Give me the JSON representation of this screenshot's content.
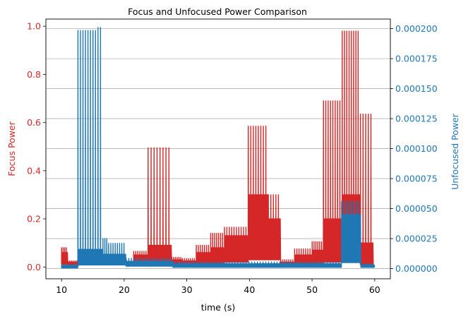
{
  "chart_data": {
    "type": "line",
    "title": "Focus and Unfocused Power Comparison",
    "xlabel": "time (s)",
    "xlim": [
      7.5,
      62.5
    ],
    "xticks": [
      "10",
      "20",
      "30",
      "40",
      "50",
      "60"
    ],
    "xtick_values": [
      10,
      20,
      30,
      40,
      50,
      60
    ],
    "grid": "horizontal lines at right-axis ticks",
    "colors": {
      "focus": "#d62728",
      "unfocused": "#1f77b4",
      "grid": "#b0b0b0"
    },
    "left_axis": {
      "label": "Focus Power",
      "ylim": [
        -0.049,
        1.03
      ],
      "ticks": [
        "0.0",
        "0.2",
        "0.4",
        "0.6",
        "0.8",
        "1.0"
      ],
      "tick_values": [
        0.0,
        0.2,
        0.4,
        0.6,
        0.8,
        1.0
      ]
    },
    "right_axis": {
      "label": "Unfocused Power",
      "ylim": [
        -8.5e-06,
        0.000208
      ],
      "ticks": [
        "0.000000",
        "0.000025",
        "0.000050",
        "0.000075",
        "0.000100",
        "0.000125",
        "0.000150",
        "0.000175",
        "0.000200"
      ],
      "tick_values": [
        0,
        2.5e-05,
        5e-05,
        7.5e-05,
        0.0001,
        0.000125,
        0.00015,
        0.000175,
        0.0002
      ]
    },
    "series": [
      {
        "name": "Focus Power",
        "axis": "left",
        "segments": [
          {
            "start": 10.0,
            "end": 11.0,
            "peak": 0.08,
            "body": 0.06,
            "base": 0.01,
            "spikes": 4
          },
          {
            "start": 11.0,
            "end": 12.7,
            "peak": 0.025,
            "body": 0.02,
            "base": 0.005,
            "spikes": 6
          },
          {
            "start": 12.7,
            "end": 16.0,
            "peak": 0.06,
            "body": 0.04,
            "base": 0.01,
            "spikes": 8
          },
          {
            "start": 16.0,
            "end": 18.5,
            "peak": 0.04,
            "body": 0.03,
            "base": 0.01,
            "spikes": 7
          },
          {
            "start": 18.5,
            "end": 21.5,
            "peak": 0.025,
            "body": 0.02,
            "base": 0.01,
            "spikes": 8
          },
          {
            "start": 21.5,
            "end": 23.8,
            "peak": 0.065,
            "body": 0.05,
            "base": 0.01,
            "spikes": 7
          },
          {
            "start": 23.8,
            "end": 27.6,
            "peak": 0.495,
            "body": 0.09,
            "base": 0.02,
            "spikes": 8
          },
          {
            "start": 27.6,
            "end": 29.3,
            "peak": 0.04,
            "body": 0.03,
            "base": 0.005,
            "spikes": 6
          },
          {
            "start": 29.3,
            "end": 31.5,
            "peak": 0.035,
            "body": 0.025,
            "base": 0.005,
            "spikes": 7
          },
          {
            "start": 31.5,
            "end": 33.8,
            "peak": 0.09,
            "body": 0.06,
            "base": 0.01,
            "spikes": 7
          },
          {
            "start": 33.8,
            "end": 36.0,
            "peak": 0.14,
            "body": 0.08,
            "base": 0.01,
            "spikes": 7
          },
          {
            "start": 36.0,
            "end": 39.8,
            "peak": 0.165,
            "body": 0.13,
            "base": 0.02,
            "spikes": 10
          },
          {
            "start": 39.8,
            "end": 43.0,
            "peak": 0.585,
            "body": 0.3,
            "base": 0.03,
            "spikes": 8
          },
          {
            "start": 43.0,
            "end": 45.0,
            "peak": 0.3,
            "body": 0.2,
            "base": 0.03,
            "spikes": 5
          },
          {
            "start": 45.0,
            "end": 47.2,
            "peak": 0.03,
            "body": 0.02,
            "base": 0.005,
            "spikes": 7
          },
          {
            "start": 47.2,
            "end": 50.0,
            "peak": 0.075,
            "body": 0.05,
            "base": 0.01,
            "spikes": 8
          },
          {
            "start": 50.0,
            "end": 51.8,
            "peak": 0.105,
            "body": 0.07,
            "base": 0.01,
            "spikes": 6
          },
          {
            "start": 51.8,
            "end": 54.8,
            "peak": 0.69,
            "body": 0.2,
            "base": 0.02,
            "spikes": 8
          },
          {
            "start": 54.8,
            "end": 57.7,
            "peak": 0.98,
            "body": 0.3,
            "base": 0.03,
            "spikes": 8
          },
          {
            "start": 57.7,
            "end": 59.8,
            "peak": 0.635,
            "body": 0.1,
            "base": 0.01,
            "spikes": 5
          }
        ]
      },
      {
        "name": "Unfocused Power",
        "axis": "right",
        "segments": [
          {
            "start": 10.0,
            "end": 12.6,
            "peak": 3.5e-06,
            "body": 2.5e-06,
            "base": 5e-07,
            "spikes": 8
          },
          {
            "start": 12.6,
            "end": 15.8,
            "peak": 0.0001985,
            "body": 1.6e-05,
            "base": 3e-06,
            "spikes": 8
          },
          {
            "start": 15.8,
            "end": 16.6,
            "peak": 0.000201,
            "body": 1.6e-05,
            "base": 3e-06,
            "spikes": 2
          },
          {
            "start": 16.6,
            "end": 17.5,
            "peak": 2.5e-05,
            "body": 1.2e-05,
            "base": 3e-06,
            "spikes": 3
          },
          {
            "start": 17.5,
            "end": 20.3,
            "peak": 2.1e-05,
            "body": 1.2e-05,
            "base": 3e-06,
            "spikes": 8
          },
          {
            "start": 20.3,
            "end": 27.8,
            "peak": 8.5e-06,
            "body": 6e-06,
            "base": 2e-06,
            "spikes": 18
          },
          {
            "start": 27.8,
            "end": 54.7,
            "peak": 5.5e-06,
            "body": 4e-06,
            "base": 1e-06,
            "spikes": 60
          },
          {
            "start": 54.7,
            "end": 57.8,
            "peak": 5.6e-05,
            "body": 4.5e-05,
            "base": 5e-06,
            "spikes": 8
          },
          {
            "start": 57.8,
            "end": 60.0,
            "peak": 4e-06,
            "body": 3e-06,
            "base": 1e-06,
            "spikes": 6
          }
        ]
      }
    ]
  }
}
